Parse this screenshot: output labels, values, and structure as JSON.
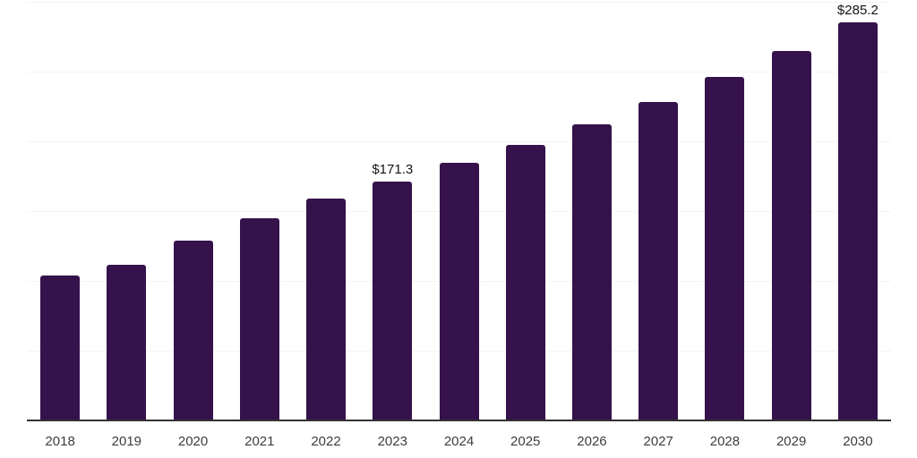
{
  "chart_data": {
    "type": "bar",
    "title": "",
    "xlabel": "",
    "ylabel": "",
    "categories": [
      "2018",
      "2019",
      "2020",
      "2021",
      "2022",
      "2023",
      "2024",
      "2025",
      "2026",
      "2027",
      "2028",
      "2029",
      "2030"
    ],
    "values": [
      104.0,
      111.5,
      129.1,
      145.1,
      159.2,
      171.3,
      184.3,
      197.5,
      212.0,
      228.0,
      246.2,
      264.9,
      285.2
    ],
    "annotations": [
      {
        "index": 5,
        "text": "$171.3"
      },
      {
        "index": 12,
        "text": "$285.2"
      }
    ],
    "ylim": [
      0,
      300
    ],
    "gridline_values": [
      50,
      100,
      150,
      200,
      250,
      300
    ],
    "grid": "horizontal",
    "legend": "none",
    "colors": {
      "bar": "#35124B",
      "axis_line": "#333333",
      "gridline": "#f4f4f4",
      "tick_label": "#3d3d3d",
      "value_label": "#141414",
      "background": "#ffffff"
    }
  }
}
